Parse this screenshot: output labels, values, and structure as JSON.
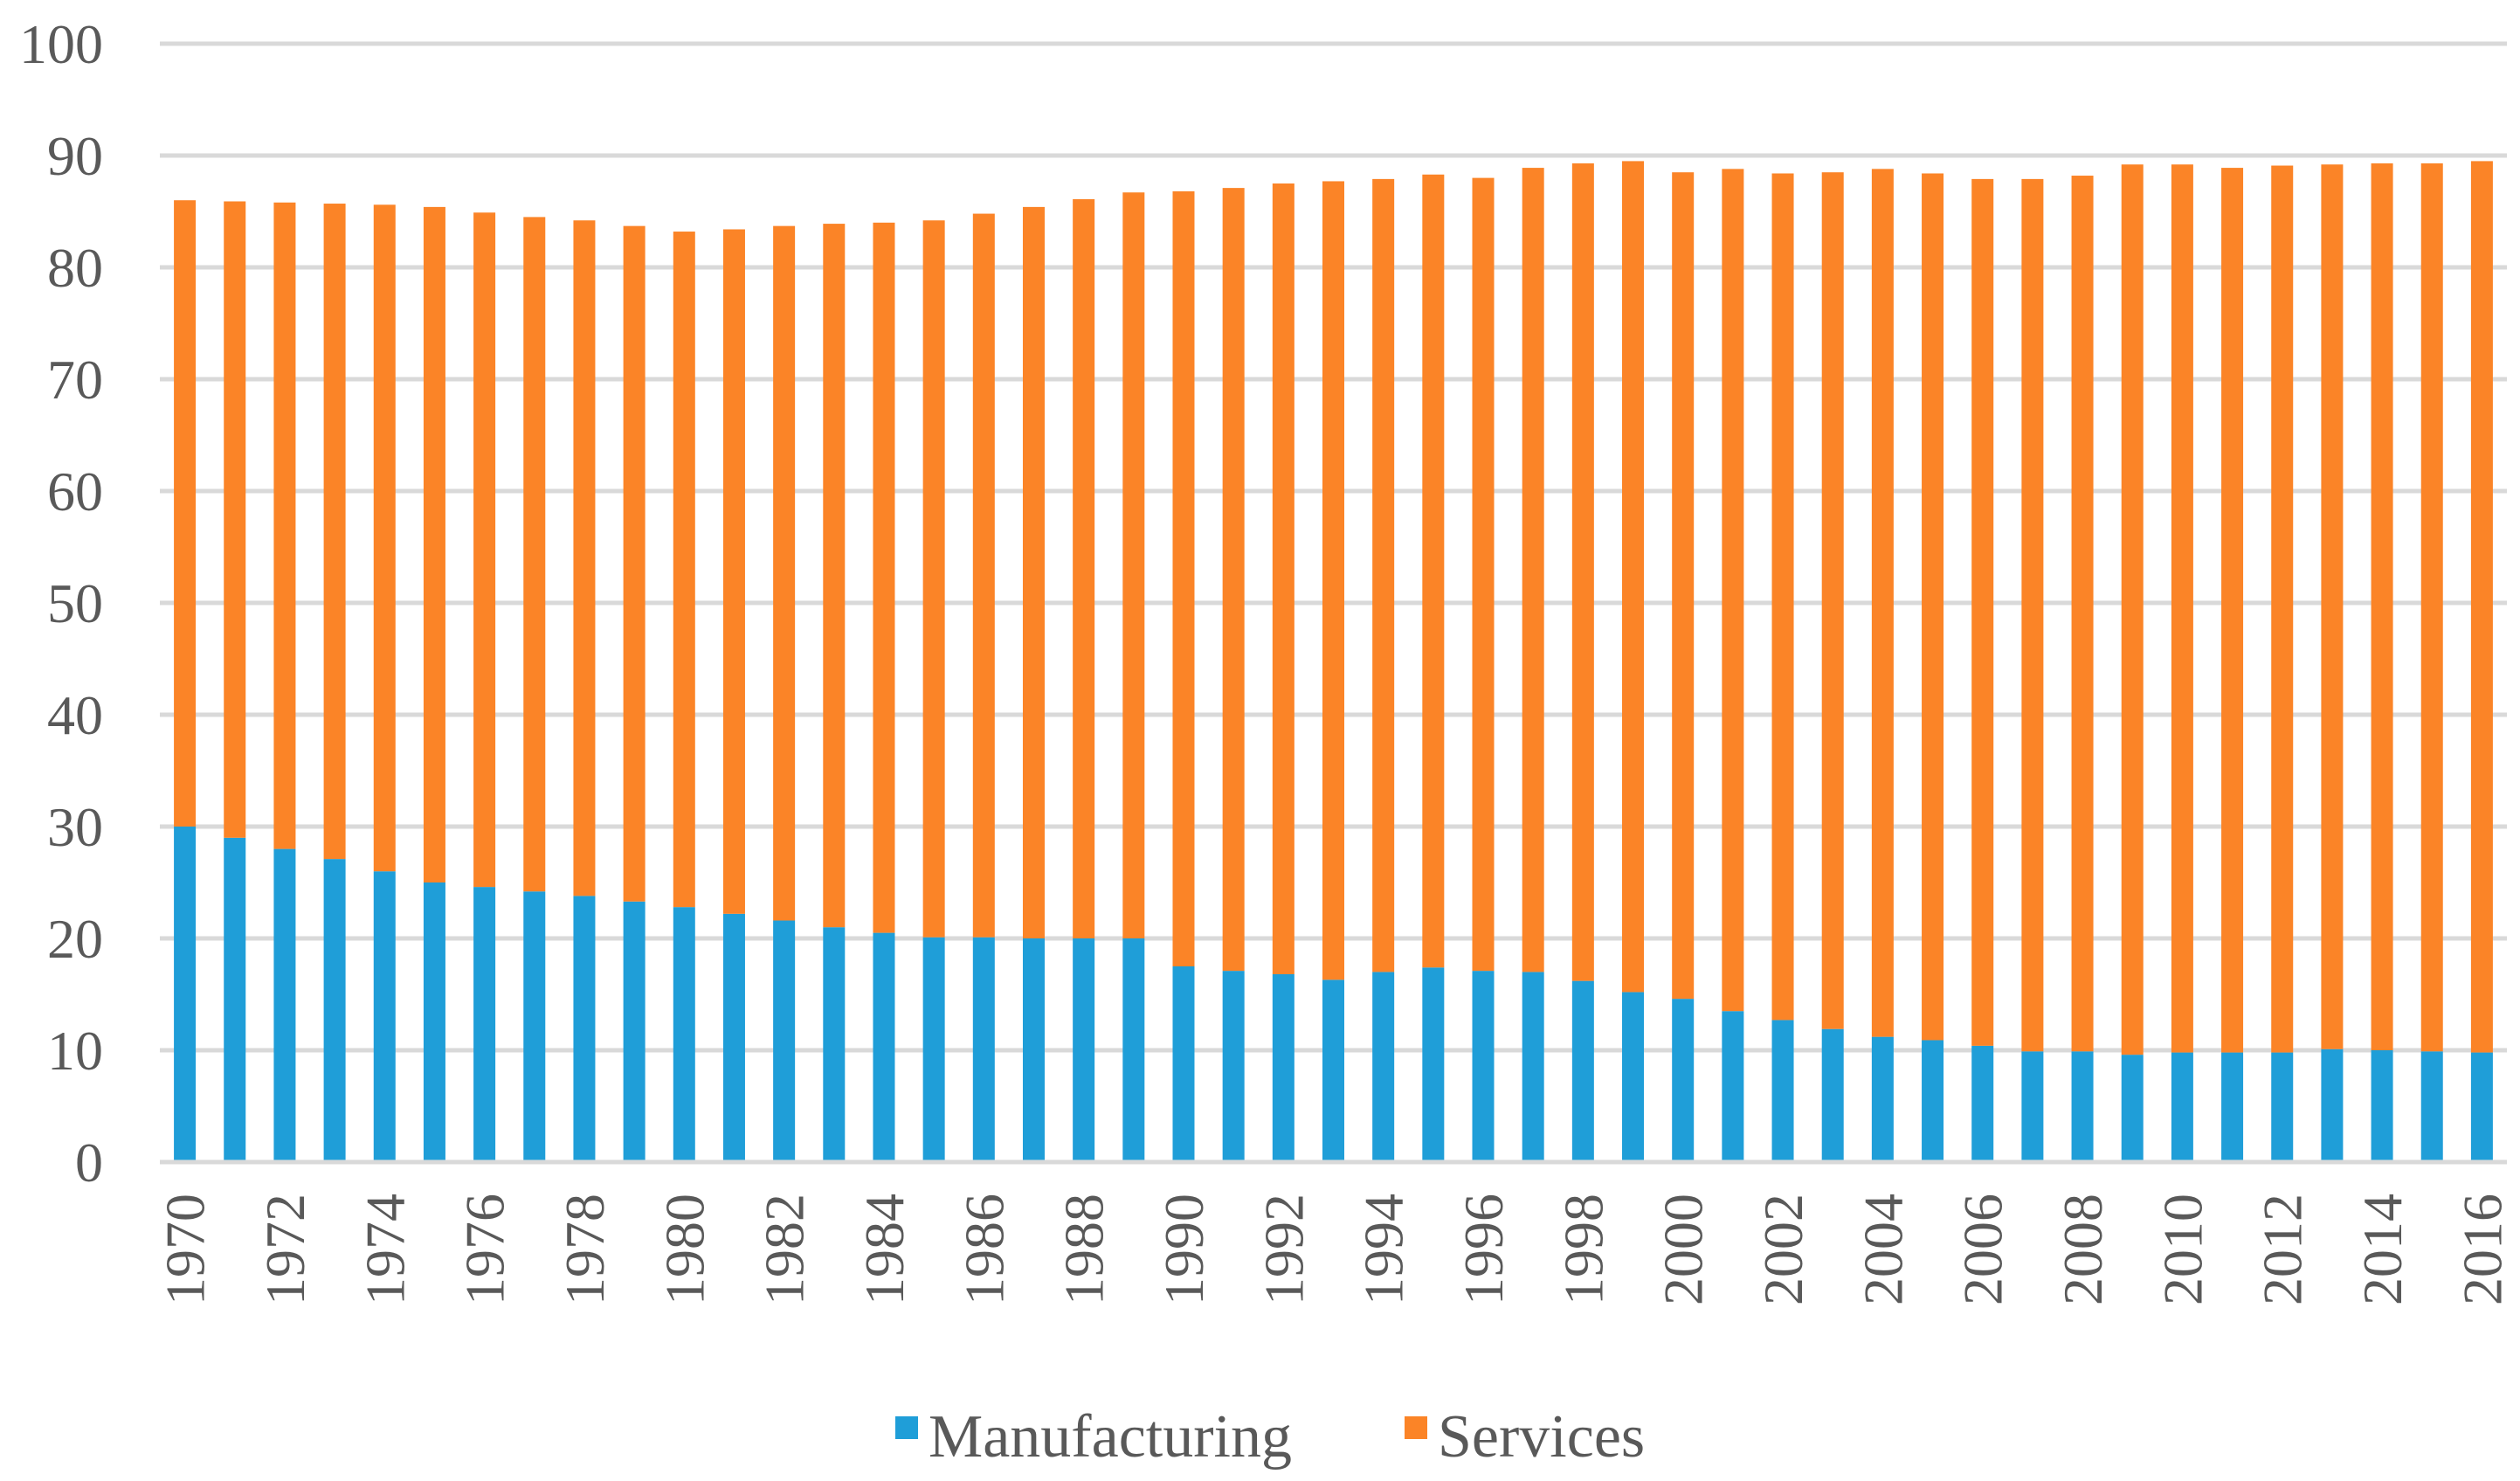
{
  "chart_data": {
    "type": "bar",
    "stacked": true,
    "title": "",
    "xlabel": "",
    "ylabel": "",
    "ylim": [
      0,
      100
    ],
    "yticks": [
      0,
      10,
      20,
      30,
      40,
      50,
      60,
      70,
      80,
      90,
      100
    ],
    "grid": true,
    "legend_position": "bottom",
    "categories": [
      "1970",
      "1971",
      "1972",
      "1973",
      "1974",
      "1975",
      "1976",
      "1977",
      "1978",
      "1979",
      "1980",
      "1981",
      "1982",
      "1983",
      "1984",
      "1985",
      "1986",
      "1987",
      "1988",
      "1989",
      "1990",
      "1991",
      "1992",
      "1993",
      "1994",
      "1995",
      "1996",
      "1997",
      "1998",
      "1999",
      "2000",
      "2001",
      "2002",
      "2003",
      "2004",
      "2005",
      "2006",
      "2007",
      "2008",
      "2009",
      "2010",
      "2011",
      "2012",
      "2013",
      "2014",
      "2015",
      "2016"
    ],
    "x_tick_labels": [
      "1970",
      "1972",
      "1974",
      "1976",
      "1978",
      "1980",
      "1982",
      "1984",
      "1986",
      "1988",
      "1990",
      "1992",
      "1994",
      "1996",
      "1998",
      "2000",
      "2002",
      "2004",
      "2006",
      "2008",
      "2010",
      "2012",
      "2014",
      "2016"
    ],
    "series": [
      {
        "name": "Manufacturing",
        "color": "#1f9ed8",
        "values": [
          30.0,
          29.0,
          28.0,
          27.1,
          26.0,
          25.0,
          24.6,
          24.2,
          23.8,
          23.3,
          22.8,
          22.2,
          21.6,
          21.0,
          20.5,
          20.1,
          20.1,
          20.0,
          20.0,
          20.0,
          17.5,
          17.1,
          16.8,
          16.3,
          17.0,
          17.4,
          17.1,
          17.0,
          16.2,
          15.2,
          14.6,
          13.5,
          12.7,
          11.9,
          11.2,
          10.9,
          10.4,
          9.9,
          9.9,
          9.6,
          9.8,
          9.8,
          9.8,
          10.1,
          10.0,
          9.9,
          9.8
        ]
      },
      {
        "name": "Services",
        "color": "#fb8427",
        "values": [
          56.0,
          56.9,
          57.8,
          58.6,
          59.6,
          60.4,
          60.3,
          60.3,
          60.4,
          60.4,
          60.4,
          61.2,
          62.1,
          62.9,
          63.5,
          64.1,
          64.7,
          65.4,
          66.1,
          66.7,
          69.3,
          70.0,
          70.7,
          71.4,
          70.9,
          70.9,
          70.9,
          71.9,
          73.1,
          74.3,
          73.9,
          75.3,
          75.7,
          76.6,
          77.6,
          77.5,
          77.5,
          78.0,
          78.3,
          79.6,
          79.4,
          79.1,
          79.3,
          79.1,
          79.3,
          79.4,
          79.7
        ]
      }
    ]
  }
}
